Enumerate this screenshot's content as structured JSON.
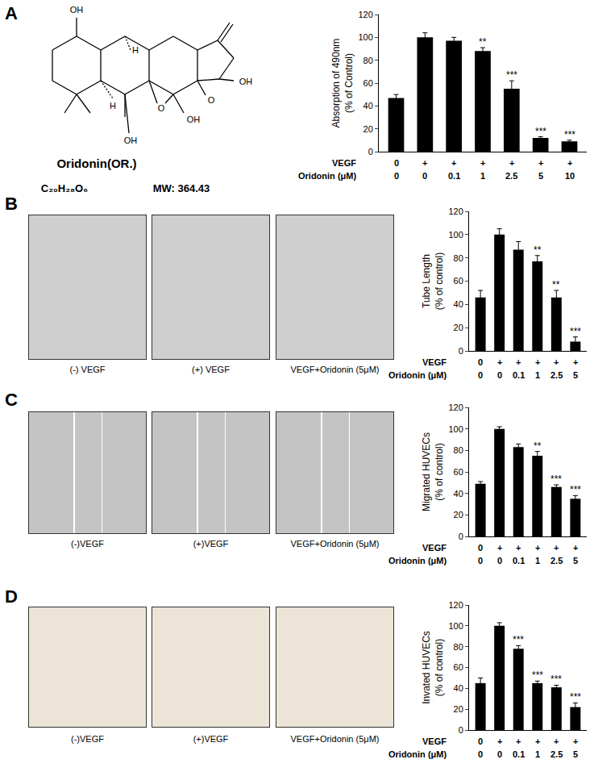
{
  "panel_labels": [
    "A",
    "B",
    "C",
    "D"
  ],
  "structure": {
    "name": "Oridonin(OR.)",
    "formula": "C₂₀H₂₈O₆",
    "mw": "MW: 364.43",
    "atom_labels": [
      "OH",
      "H",
      "OH",
      "O",
      "OH",
      "H",
      "OH",
      "O"
    ]
  },
  "images": [
    {
      "panel": "B",
      "captions": [
        "(-) VEGF",
        "(+) VEGF",
        "VEGF+Oridonin (5μM)"
      ]
    },
    {
      "panel": "C",
      "captions": [
        "(-)VEGF",
        "(+)VEGF",
        "VEGF+Oridonin (5μM)"
      ]
    },
    {
      "panel": "D",
      "captions": [
        "(-)VEGF",
        "(+)VEGF",
        "VEGF+Oridonin (5μM)"
      ]
    }
  ],
  "chart_data": [
    {
      "type": "bar",
      "panel": "A",
      "y_label": [
        "Absorption of 490nm",
        "(% of Control)"
      ],
      "rows": [
        {
          "label": "VEGF",
          "values": [
            "0",
            "+",
            "+",
            "+",
            "+",
            "+",
            "+"
          ]
        },
        {
          "label": "Oridonin (μM)",
          "values": [
            "0",
            "0",
            "0.1",
            "1",
            "2.5",
            "5",
            "10"
          ]
        }
      ],
      "values": [
        47,
        100,
        97,
        88,
        55,
        12,
        9
      ],
      "errors": [
        3,
        4,
        3,
        3,
        7,
        1,
        1
      ],
      "significance": [
        null,
        null,
        null,
        "**",
        "***",
        "***",
        "***"
      ],
      "color": "#000000",
      "ylim": [
        0,
        120
      ],
      "yticks": [
        0,
        20,
        40,
        60,
        80,
        100,
        120
      ],
      "grid": false,
      "tick_labels": "y"
    },
    {
      "type": "bar",
      "panel": "B",
      "y_label": [
        "Tube Length",
        "(% of control)"
      ],
      "rows": [
        {
          "label": "VEGF",
          "values": [
            "0",
            "+",
            "+",
            "+",
            "+",
            "+"
          ]
        },
        {
          "label": "Oridonin (μM)",
          "values": [
            "0",
            "0",
            "0.1",
            "1",
            "2.5",
            "5"
          ]
        }
      ],
      "values": [
        46,
        100,
        87,
        77,
        46,
        8
      ],
      "errors": [
        6,
        5,
        7,
        5,
        6,
        4
      ],
      "significance": [
        null,
        null,
        null,
        "**",
        "**",
        "***"
      ],
      "color": "#000000",
      "ylim": [
        0,
        120
      ],
      "yticks": [
        0,
        20,
        40,
        60,
        80,
        100,
        120
      ],
      "grid": false,
      "tick_labels": "y"
    },
    {
      "type": "bar",
      "panel": "C",
      "y_label": [
        "Migrated HUVECs",
        "(% of control)"
      ],
      "rows": [
        {
          "label": "VEGF",
          "values": [
            "0",
            "+",
            "+",
            "+",
            "+",
            "+"
          ]
        },
        {
          "label": "Oridonin (μM)",
          "values": [
            "0",
            "0",
            "0.1",
            "1",
            "2.5",
            "5"
          ]
        }
      ],
      "values": [
        49,
        100,
        83,
        75,
        46,
        35
      ],
      "errors": [
        2,
        2,
        3,
        4,
        2,
        3
      ],
      "significance": [
        null,
        null,
        null,
        "**",
        "***",
        "***"
      ],
      "color": "#000000",
      "ylim": [
        0,
        120
      ],
      "yticks": [
        0,
        20,
        40,
        60,
        80,
        100,
        120
      ],
      "grid": false,
      "tick_labels": "y"
    },
    {
      "type": "bar",
      "panel": "D",
      "y_label": [
        "Invated HUVECs",
        "(% of control)"
      ],
      "rows": [
        {
          "label": "VEGF",
          "values": [
            "0",
            "+",
            "+",
            "+",
            "+",
            "+"
          ]
        },
        {
          "label": "Oridonin (μM)",
          "values": [
            "0",
            "0",
            "0.1",
            "1",
            "2.5",
            "5"
          ]
        }
      ],
      "values": [
        45,
        100,
        78,
        45,
        41,
        22
      ],
      "errors": [
        5,
        3,
        3,
        2,
        2,
        4
      ],
      "significance": [
        null,
        null,
        "***",
        "***",
        "***",
        "***"
      ],
      "color": "#000000",
      "ylim": [
        0,
        120
      ],
      "yticks": [
        0,
        20,
        40,
        60,
        80,
        100,
        120
      ],
      "grid": false,
      "tick_labels": "y"
    }
  ]
}
